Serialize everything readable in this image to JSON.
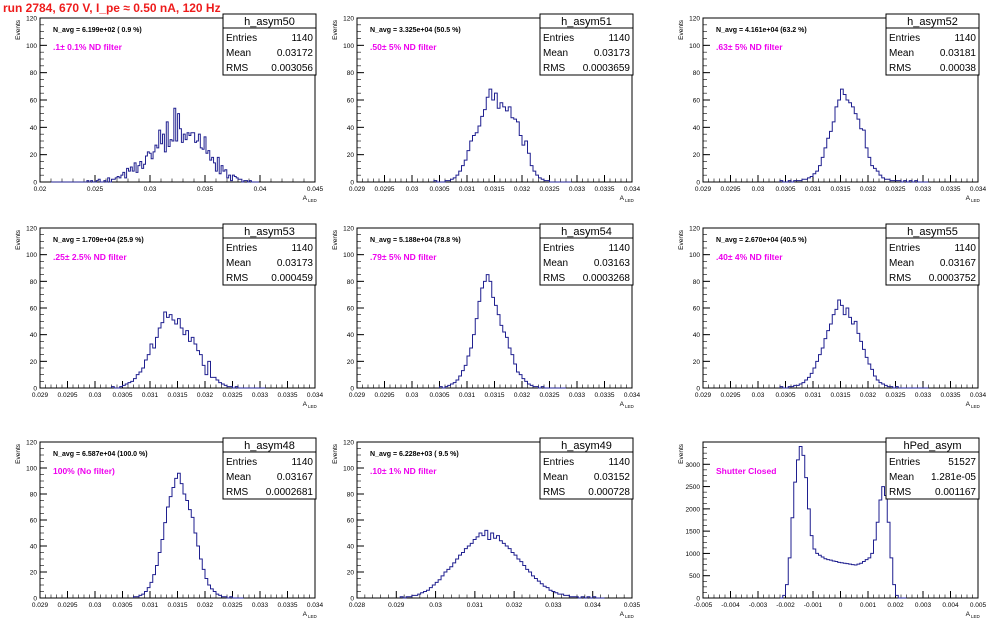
{
  "header": {
    "title": "run 2784,   670 V, I_pe ≈ 0.50 nA, 120 Hz"
  },
  "common": {
    "ylabel": "Events",
    "xlabel_main": "A",
    "xlabel_sub": "LED",
    "stat_labels": [
      "Entries",
      "Mean",
      "RMS"
    ]
  },
  "colors": {
    "histogram": "#1f1f8f",
    "annotation": "#ee00ee",
    "header": "#ee1c1c",
    "axis": "#000000"
  },
  "chart_data": [
    {
      "type": "histogram",
      "name": "h_asym50",
      "navg": "N_avg = 6.199e+02 ( 0.9 %)",
      "filter": ".1± 0.1% ND filter",
      "stats": {
        "entries": "1140",
        "mean": "0.03172",
        "rms": "0.003056"
      },
      "xlim": [
        0.02,
        0.045
      ],
      "ylim": [
        0,
        120
      ],
      "xticks": [
        "0.02",
        "0.025",
        "0.03",
        "0.035",
        "0.04",
        "0.045"
      ],
      "yticks": [
        "0",
        "20",
        "40",
        "60",
        "80",
        "100",
        "120"
      ],
      "bin_edges": [
        0.021,
        0.0399
      ],
      "counts": [
        0,
        0,
        0,
        0,
        0,
        0,
        0,
        0,
        0,
        0,
        0,
        0,
        0,
        0,
        0,
        0,
        0,
        0,
        0,
        1,
        0,
        1,
        0,
        0,
        1,
        2,
        0,
        0,
        1,
        0,
        3,
        0,
        2,
        2,
        3,
        4,
        3,
        5,
        7,
        3,
        10,
        8,
        11,
        8,
        14,
        7,
        12,
        15,
        10,
        13,
        19,
        22,
        21,
        17,
        22,
        27,
        25,
        38,
        28,
        35,
        22,
        44,
        26,
        31,
        30,
        54,
        30,
        50,
        39,
        29,
        35,
        31,
        36,
        34,
        36,
        36,
        29,
        30,
        35,
        25,
        24,
        33,
        21,
        23,
        16,
        18,
        14,
        8,
        18,
        6,
        12,
        8,
        9,
        3,
        5,
        1,
        5,
        4,
        3,
        2,
        2,
        0,
        1,
        1,
        0,
        1,
        0,
        0,
        0,
        0
      ]
    },
    {
      "type": "histogram",
      "name": "h_asym51",
      "navg": "N_avg = 3.325e+04 (50.5 %)",
      "filter": ".50± 5% ND filter",
      "stats": {
        "entries": "1140",
        "mean": "0.03173",
        "rms": "0.0003659"
      },
      "xlim": [
        0.029,
        0.034
      ],
      "ylim": [
        0,
        120
      ],
      "xticks": [
        "0.029",
        "0.0295",
        "0.03",
        "0.0305",
        "0.031",
        "0.0315",
        "0.032",
        "0.0325",
        "0.033",
        "0.0335",
        "0.034"
      ],
      "yticks": [
        "0",
        "20",
        "40",
        "60",
        "80",
        "100",
        "120"
      ],
      "bin_edges": [
        0.0304,
        0.0329
      ],
      "counts": [
        1,
        0,
        0,
        0,
        1,
        1,
        2,
        3,
        5,
        8,
        12,
        16,
        23,
        30,
        34,
        36,
        41,
        48,
        53,
        62,
        68,
        60,
        65,
        54,
        58,
        55,
        52,
        55,
        47,
        46,
        44,
        34,
        27,
        30,
        21,
        12,
        8,
        5,
        3,
        2,
        1,
        1,
        0,
        0,
        0,
        0,
        0,
        0,
        0,
        0
      ]
    },
    {
      "type": "histogram",
      "name": "h_asym52",
      "navg": "N_avg = 4.161e+04 (63.2 %)",
      "filter": ".63± 5% ND filter",
      "stats": {
        "entries": "1140",
        "mean": "0.03181",
        "rms": "0.00038"
      },
      "xlim": [
        0.029,
        0.034
      ],
      "ylim": [
        0,
        120
      ],
      "xticks": [
        "0.029",
        "0.0295",
        "0.03",
        "0.0305",
        "0.031",
        "0.0315",
        "0.032",
        "0.0325",
        "0.033",
        "0.0335",
        "0.034"
      ],
      "yticks": [
        "0",
        "20",
        "40",
        "60",
        "80",
        "100",
        "120"
      ],
      "bin_edges": [
        0.0304,
        0.0331
      ],
      "counts": [
        1,
        0,
        0,
        1,
        0,
        1,
        1,
        1,
        2,
        2,
        3,
        4,
        6,
        8,
        12,
        18,
        25,
        32,
        37,
        44,
        55,
        60,
        68,
        64,
        60,
        58,
        55,
        50,
        46,
        39,
        38,
        25,
        18,
        12,
        10,
        8,
        5,
        3,
        2,
        2,
        1,
        1,
        1,
        1,
        0,
        1,
        0,
        1,
        0,
        1,
        0,
        0,
        0,
        0
      ]
    },
    {
      "type": "histogram",
      "name": "h_asym53",
      "navg": "N_avg = 1.709e+04 (25.9 %)",
      "filter": ".25± 2.5% ND filter",
      "stats": {
        "entries": "1140",
        "mean": "0.03173",
        "rms": "0.000459"
      },
      "xlim": [
        0.029,
        0.034
      ],
      "ylim": [
        0,
        120
      ],
      "xticks": [
        "0.029",
        "0.0295",
        "0.03",
        "0.0305",
        "0.031",
        "0.0315",
        "0.032",
        "0.0325",
        "0.033",
        "0.0335",
        "0.034"
      ],
      "yticks": [
        "0",
        "20",
        "40",
        "60",
        "80",
        "100",
        "120"
      ],
      "bin_edges": [
        0.0303,
        0.0331
      ],
      "counts": [
        1,
        0,
        0,
        1,
        2,
        3,
        4,
        5,
        7,
        10,
        12,
        15,
        21,
        25,
        33,
        30,
        38,
        45,
        49,
        57,
        53,
        55,
        51,
        48,
        52,
        45,
        40,
        43,
        35,
        38,
        33,
        28,
        25,
        17,
        10,
        20,
        8,
        8,
        6,
        4,
        3,
        2,
        1,
        1,
        0,
        1,
        0,
        0,
        0,
        0,
        0,
        0,
        0,
        0,
        0,
        0
      ]
    },
    {
      "type": "histogram",
      "name": "h_asym54",
      "navg": "N_avg = 5.188e+04 (78.8 %)",
      "filter": ".79± 5% ND filter",
      "stats": {
        "entries": "1140",
        "mean": "0.03163",
        "rms": "0.0003268"
      },
      "xlim": [
        0.029,
        0.034
      ],
      "ylim": [
        0,
        120
      ],
      "xticks": [
        "0.029",
        "0.0295",
        "0.03",
        "0.0305",
        "0.031",
        "0.0315",
        "0.032",
        "0.0325",
        "0.033",
        "0.0335",
        "0.034"
      ],
      "yticks": [
        "0",
        "20",
        "40",
        "60",
        "80",
        "100",
        "120"
      ],
      "bin_edges": [
        0.0305,
        0.0328
      ],
      "counts": [
        1,
        0,
        1,
        2,
        3,
        4,
        6,
        9,
        13,
        17,
        24,
        30,
        40,
        52,
        65,
        75,
        80,
        85,
        80,
        68,
        62,
        55,
        47,
        42,
        38,
        30,
        25,
        18,
        12,
        10,
        7,
        5,
        3,
        2,
        1,
        1,
        0,
        1,
        0,
        0,
        0,
        0,
        0,
        0,
        0,
        0
      ]
    },
    {
      "type": "histogram",
      "name": "h_asym55",
      "navg": "N_avg = 2.670e+04 (40.5 %)",
      "filter": ".40± 4% ND filter",
      "stats": {
        "entries": "1140",
        "mean": "0.03167",
        "rms": "0.0003752"
      },
      "xlim": [
        0.029,
        0.034
      ],
      "ylim": [
        0,
        120
      ],
      "xticks": [
        "0.029",
        "0.0295",
        "0.03",
        "0.0305",
        "0.031",
        "0.0315",
        "0.032",
        "0.0325",
        "0.033",
        "0.0335",
        "0.034"
      ],
      "yticks": [
        "0",
        "20",
        "40",
        "60",
        "80",
        "100",
        "120"
      ],
      "bin_edges": [
        0.0304,
        0.0331
      ],
      "counts": [
        1,
        0,
        0,
        1,
        1,
        2,
        2,
        3,
        4,
        6,
        8,
        11,
        15,
        20,
        25,
        30,
        37,
        43,
        48,
        55,
        59,
        66,
        62,
        55,
        60,
        53,
        48,
        50,
        41,
        35,
        29,
        23,
        18,
        14,
        9,
        6,
        4,
        3,
        2,
        1,
        1,
        0,
        1,
        0,
        0,
        0,
        0,
        0,
        0,
        0,
        0,
        0,
        0,
        0
      ]
    },
    {
      "type": "histogram",
      "name": "h_asym48",
      "navg": "N_avg = 6.587e+04 (100.0 %)",
      "filter": "100% (No filter)",
      "stats": {
        "entries": "1140",
        "mean": "0.03167",
        "rms": "0.0002681"
      },
      "xlim": [
        0.029,
        0.034
      ],
      "ylim": [
        0,
        120
      ],
      "xticks": [
        "0.029",
        "0.0295",
        "0.03",
        "0.0305",
        "0.031",
        "0.0315",
        "0.032",
        "0.0325",
        "0.033",
        "0.0335",
        "0.034"
      ],
      "yticks": [
        "0",
        "20",
        "40",
        "60",
        "80",
        "100",
        "120"
      ],
      "bin_edges": [
        0.0307,
        0.0327
      ],
      "counts": [
        1,
        1,
        2,
        3,
        5,
        8,
        12,
        18,
        25,
        35,
        45,
        58,
        70,
        78,
        85,
        92,
        96,
        88,
        80,
        75,
        68,
        62,
        50,
        40,
        30,
        22,
        15,
        10,
        7,
        5,
        3,
        2,
        1,
        1,
        0,
        1,
        0,
        0,
        0,
        0
      ]
    },
    {
      "type": "histogram",
      "name": "h_asym49",
      "navg": "N_avg = 6.228e+03 ( 9.5 %)",
      "filter": ".10± 1% ND filter",
      "stats": {
        "entries": "1140",
        "mean": "0.03152",
        "rms": "0.000728"
      },
      "xlim": [
        0.028,
        0.035
      ],
      "ylim": [
        0,
        120
      ],
      "xticks": [
        "0.028",
        "0.029",
        "0.03",
        "0.031",
        "0.032",
        "0.033",
        "0.034",
        "0.035"
      ],
      "yticks": [
        "0",
        "20",
        "40",
        "60",
        "80",
        "100",
        "120"
      ],
      "bin_edges": [
        0.0291,
        0.0343
      ],
      "counts": [
        1,
        0,
        1,
        1,
        2,
        2,
        3,
        4,
        5,
        6,
        8,
        10,
        12,
        14,
        17,
        20,
        22,
        24,
        27,
        30,
        33,
        35,
        38,
        40,
        42,
        45,
        47,
        50,
        48,
        52,
        45,
        50,
        46,
        48,
        44,
        42,
        40,
        38,
        35,
        33,
        30,
        28,
        25,
        22,
        20,
        17,
        15,
        13,
        11,
        9,
        8,
        6,
        5,
        4,
        3,
        3,
        2,
        2,
        1,
        1,
        1,
        0,
        1,
        0,
        1,
        0,
        1,
        0,
        0,
        0
      ]
    },
    {
      "type": "histogram",
      "name": "hPed_asym",
      "navg": "",
      "filter": "Shutter Closed",
      "stats": {
        "entries": "51527",
        "mean": "1.281e-05",
        "rms": "0.001167"
      },
      "xlim": [
        -0.005,
        0.005
      ],
      "ylim": [
        0,
        3500
      ],
      "xticks": [
        "-0.005",
        "-0.004",
        "-0.003",
        "-0.002",
        "-0.001",
        "0",
        "0.001",
        "0.002",
        "0.003",
        "0.004",
        "0.005"
      ],
      "yticks": [
        "0",
        "500",
        "1000",
        "1500",
        "2000",
        "2500",
        "3000"
      ],
      "bin_edges": [
        -0.0022,
        0.0024
      ],
      "counts": [
        0,
        60,
        300,
        900,
        1800,
        2600,
        3100,
        3400,
        3200,
        2700,
        2000,
        1400,
        1100,
        1000,
        960,
        920,
        880,
        860,
        850,
        830,
        820,
        800,
        790,
        780,
        770,
        760,
        750,
        740,
        760,
        780,
        820,
        860,
        900,
        1000,
        1300,
        1700,
        2200,
        2500,
        2300,
        1700,
        900,
        300,
        60,
        0,
        0,
        0
      ]
    }
  ]
}
